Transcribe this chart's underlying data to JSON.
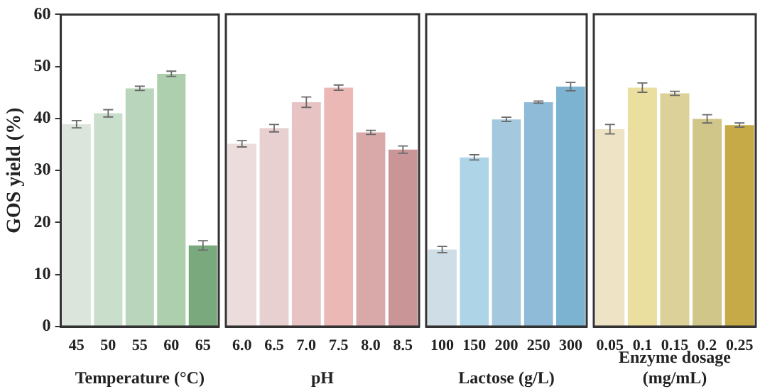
{
  "chart_data": [
    {
      "type": "bar",
      "ylabel": "GOS yield (%)",
      "xlabel": "Temperature (°C)",
      "categories": [
        "45",
        "50",
        "55",
        "60",
        "65"
      ],
      "values": [
        38.9,
        41.0,
        45.8,
        48.6,
        15.6
      ],
      "errors": [
        0.7,
        0.7,
        0.4,
        0.5,
        0.9
      ],
      "colors": [
        "#dce5dc",
        "#c9dfcc",
        "#b9d6bc",
        "#aecfae",
        "#7aa97d"
      ],
      "ylim": [
        0,
        60
      ],
      "yticks": [
        0,
        10,
        20,
        30,
        40,
        50,
        60
      ]
    },
    {
      "type": "bar",
      "xlabel": "pH",
      "categories": [
        "6.0",
        "6.5",
        "7.0",
        "7.5",
        "8.0",
        "8.5"
      ],
      "values": [
        35.1,
        38.1,
        43.1,
        45.9,
        37.3,
        34.0
      ],
      "errors": [
        0.6,
        0.7,
        1.0,
        0.5,
        0.4,
        0.7
      ],
      "colors": [
        "#eddcdc",
        "#e8cfd0",
        "#e7c3c3",
        "#ecb8b6",
        "#d9a9aa",
        "#c99596"
      ],
      "ylim": [
        0,
        60
      ],
      "yticks": [
        0,
        10,
        20,
        30,
        40,
        50,
        60
      ],
      "tick_labels": "x"
    },
    {
      "type": "bar",
      "xlabel": "Lactose (g/L)",
      "categories": [
        "100",
        "150",
        "200",
        "250",
        "300"
      ],
      "values": [
        14.8,
        32.5,
        39.8,
        43.1,
        46.1
      ],
      "errors": [
        0.6,
        0.5,
        0.4,
        0.2,
        0.8
      ],
      "colors": [
        "#cfdde6",
        "#aed5e7",
        "#a4c9de",
        "#8fbbd8",
        "#7cb3d0"
      ],
      "ylim": [
        0,
        60
      ],
      "yticks": [
        0,
        10,
        20,
        30,
        40,
        50,
        60
      ],
      "tick_labels": "x"
    },
    {
      "type": "bar",
      "xlabel": "Enzyme dosage (mg/mL)",
      "categories": [
        "0.05",
        "0.1",
        "0.15",
        "0.2",
        "0.25"
      ],
      "values": [
        37.9,
        45.9,
        44.8,
        39.9,
        38.7
      ],
      "errors": [
        0.9,
        0.9,
        0.4,
        0.8,
        0.4
      ],
      "colors": [
        "#eee4c5",
        "#eadf9f",
        "#ddd19a",
        "#d1c689",
        "#c5aa47"
      ],
      "ylim": [
        0,
        60
      ],
      "yticks": [
        0,
        10,
        20,
        30,
        40,
        50,
        60
      ],
      "tick_labels": "x"
    }
  ]
}
